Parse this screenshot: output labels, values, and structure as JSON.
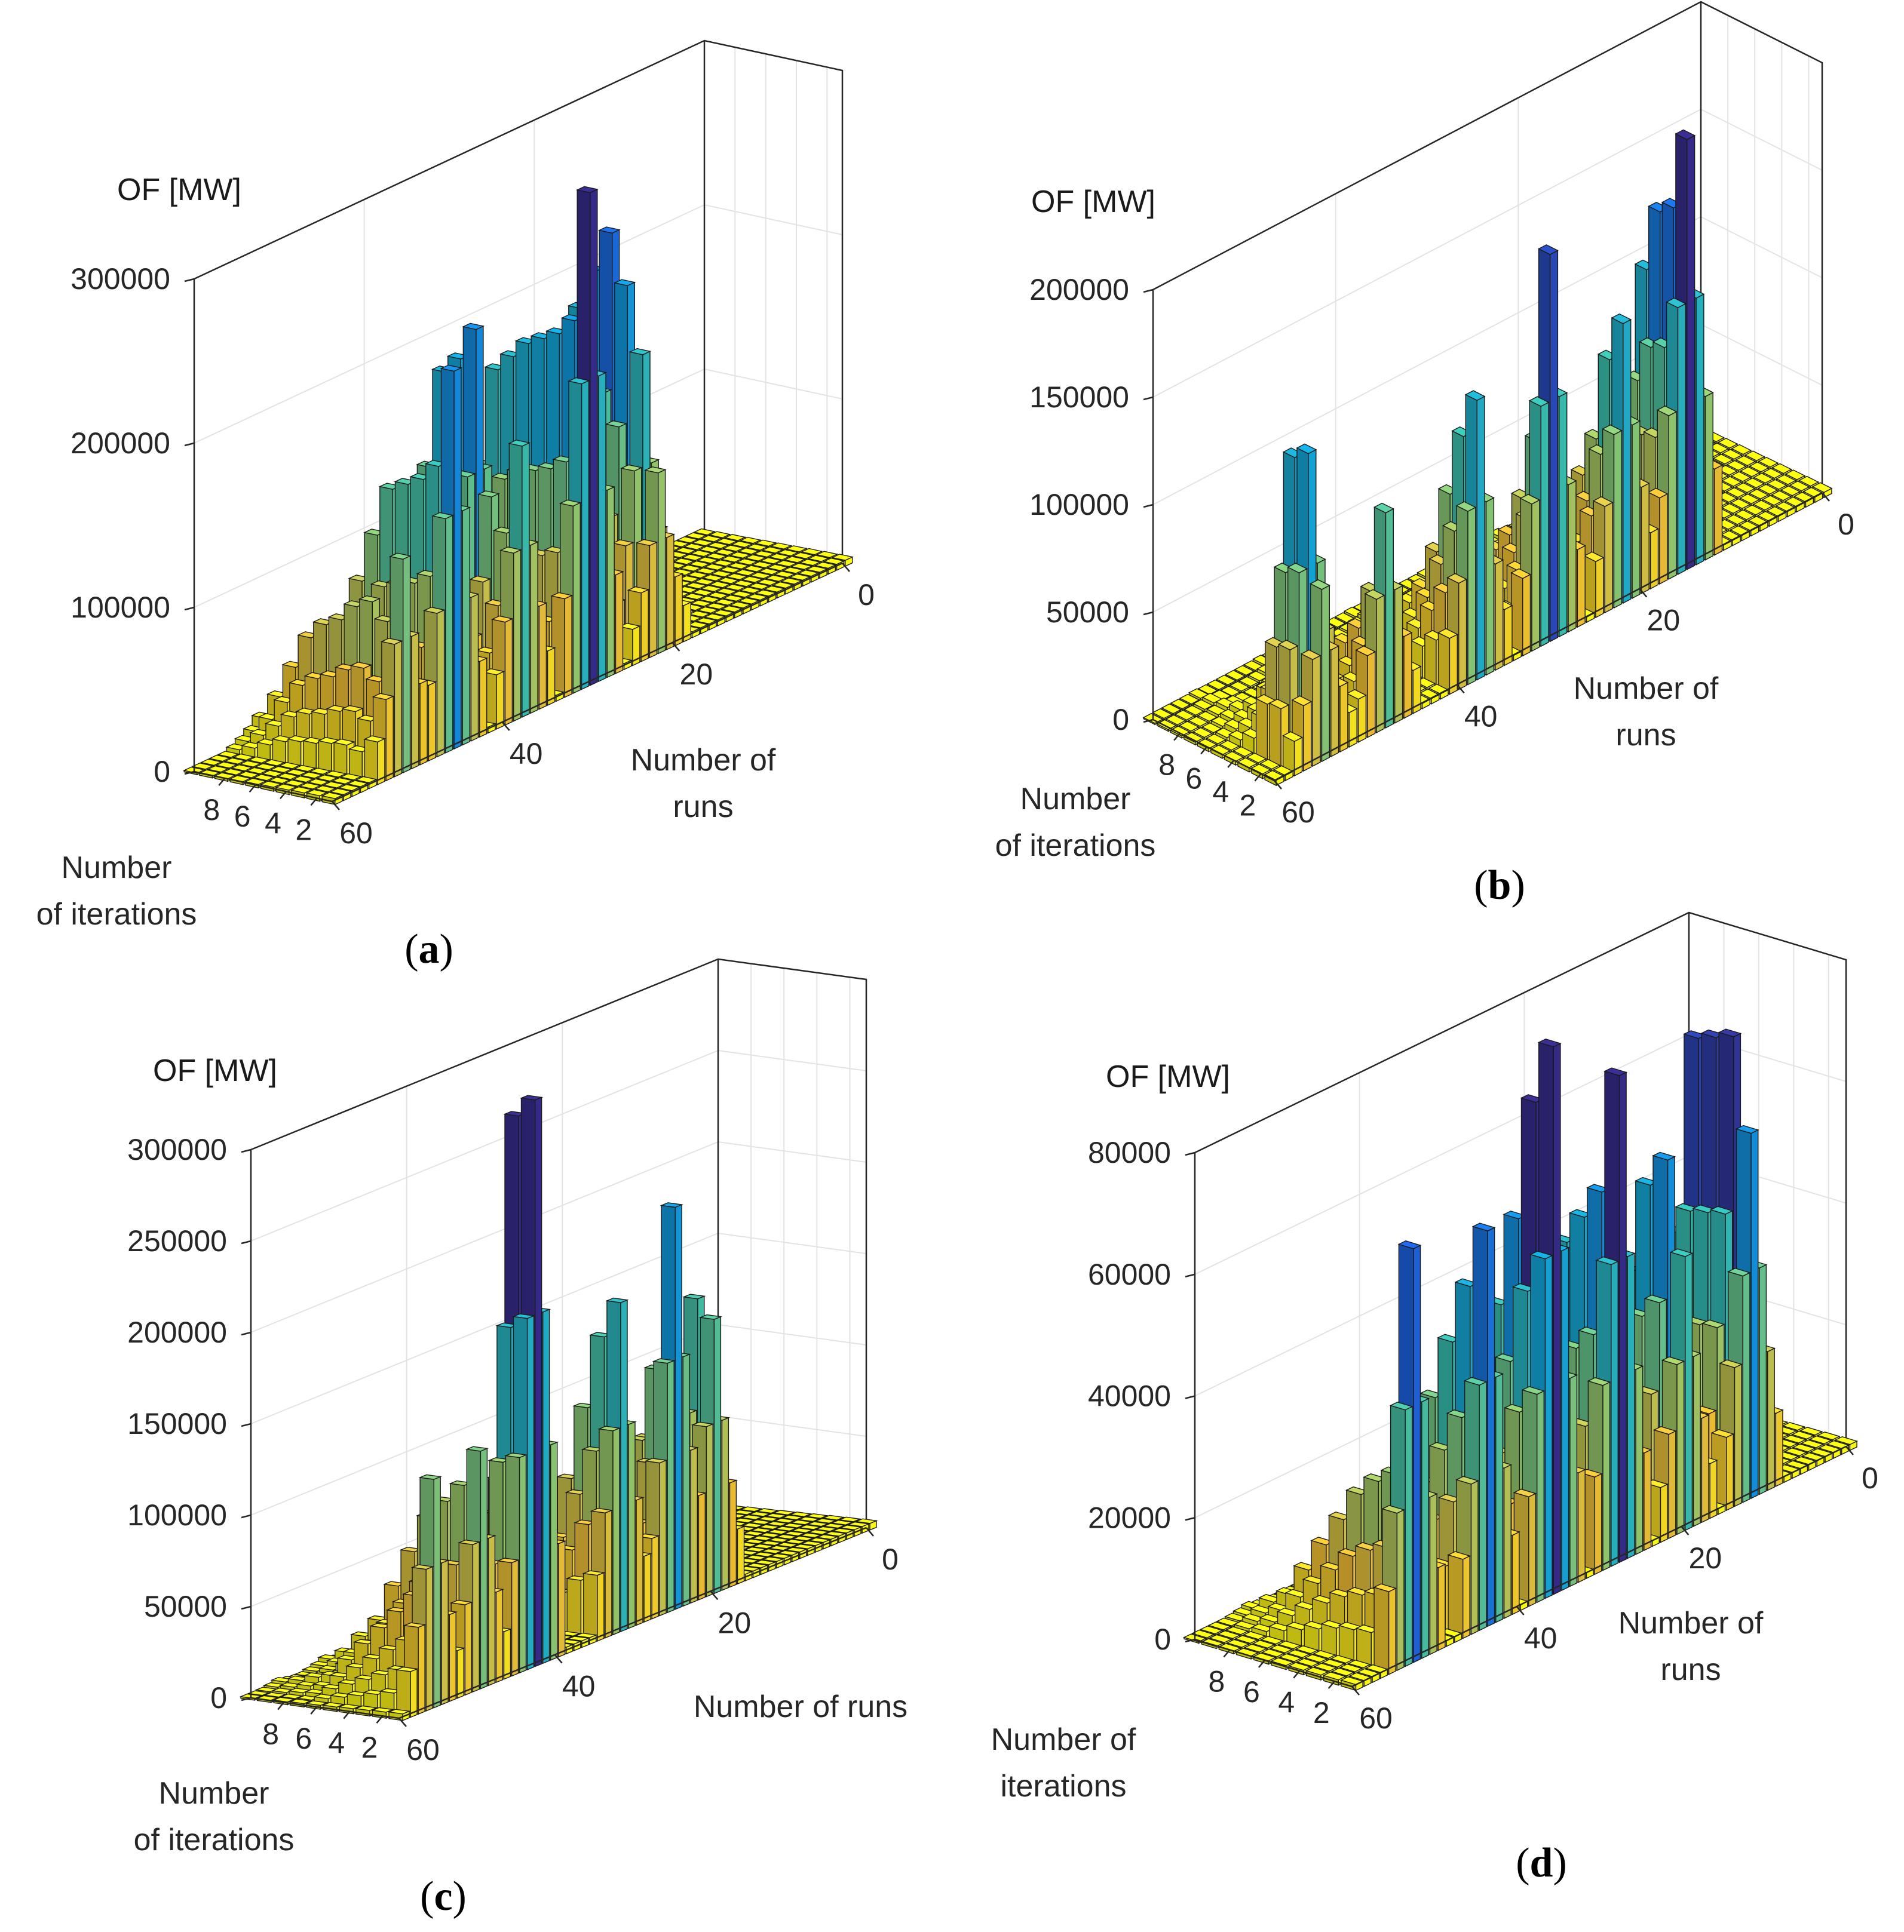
{
  "figure": {
    "colormap": [
      "#352a87",
      "#1c5fd8",
      "#0f9fd6",
      "#38b9a8",
      "#8fc26a",
      "#e9b932",
      "#f9fb0e"
    ]
  },
  "chart_data": [
    {
      "id": "a",
      "type": "bar3",
      "caption_letter": "a",
      "zlabel": "OF [MW]",
      "xlabel_lines": [
        "Number of",
        "runs"
      ],
      "ylabel_lines": [
        "Number",
        "of iterations"
      ],
      "z_ticks": [
        "0",
        "100000",
        "200000",
        "300000"
      ],
      "z_tick_values": [
        0,
        100000,
        200000,
        300000
      ],
      "zlim": [
        0,
        300000
      ],
      "run_ticks": [
        "0",
        "20",
        "40",
        "60"
      ],
      "run_tick_values": [
        0,
        20,
        40,
        60
      ],
      "iter_ticks": [
        "2",
        "4",
        "6",
        "8"
      ],
      "iter_tick_values": [
        2,
        4,
        6,
        8
      ],
      "runs_range": [
        0,
        60
      ],
      "iterations_range": [
        1,
        10
      ],
      "peaks": [
        {
          "run": 22,
          "values": [
            110000,
            180000,
            220000,
            250000,
            225000,
            200000,
            150000,
            80000,
            30000,
            10000
          ]
        },
        {
          "run": 30,
          "values": [
            300000,
            220000,
            210000,
            205000,
            200000,
            190000,
            180000,
            120000,
            70000,
            30000
          ]
        },
        {
          "run": 38,
          "values": [
            165000,
            110000,
            130000,
            230000,
            210000,
            200000,
            140000,
            90000,
            60000,
            20000
          ]
        },
        {
          "run": 46,
          "values": [
            230000,
            170000,
            160000,
            155000,
            150000,
            120000,
            90000,
            60000,
            40000,
            20000
          ]
        },
        {
          "run": 52,
          "values": [
            130000,
            90000,
            100000,
            95000,
            85000,
            80000,
            70000,
            50000,
            30000,
            15000
          ]
        }
      ]
    },
    {
      "id": "b",
      "type": "bar3",
      "caption_letter": "b",
      "zlabel": "OF [MW]",
      "xlabel_lines": [
        "Number of",
        "runs"
      ],
      "ylabel_lines": [
        "Number",
        "of iterations"
      ],
      "z_ticks": [
        "0",
        "50000",
        "100000",
        "150000",
        "200000"
      ],
      "z_tick_values": [
        0,
        50000,
        100000,
        150000,
        200000
      ],
      "zlim": [
        0,
        200000
      ],
      "run_ticks": [
        "0",
        "20",
        "40",
        "60"
      ],
      "run_tick_values": [
        0,
        20,
        40,
        60
      ],
      "iter_ticks": [
        "2",
        "4",
        "6",
        "8"
      ],
      "iter_tick_values": [
        2,
        4,
        6,
        8
      ],
      "runs_range": [
        0,
        60
      ],
      "iterations_range": [
        1,
        10
      ],
      "peaks": [
        {
          "run": 15,
          "values": [
            200000,
            165000,
            160000,
            130000,
            60000,
            40000,
            30000,
            20000,
            8000,
            3000
          ]
        },
        {
          "run": 22,
          "values": [
            130000,
            110000,
            70000,
            50000,
            40000,
            30000,
            20000,
            10000,
            5000,
            2000
          ]
        },
        {
          "run": 30,
          "values": [
            180000,
            90000,
            60000,
            40000,
            30000,
            20000,
            10000,
            5000,
            3000,
            1000
          ]
        },
        {
          "run": 38,
          "values": [
            130000,
            110000,
            80000,
            50000,
            30000,
            20000,
            10000,
            5000,
            3000,
            1000
          ]
        },
        {
          "run": 48,
          "values": [
            100000,
            60000,
            40000,
            30000,
            20000,
            10000,
            8000,
            5000,
            3000,
            1000
          ]
        },
        {
          "run": 55,
          "values": [
            80000,
            140000,
            135000,
            40000,
            20000,
            10000,
            5000,
            3000,
            2000,
            1000
          ]
        }
      ]
    },
    {
      "id": "c",
      "type": "bar3",
      "caption_letter": "c",
      "zlabel": "OF [MW]",
      "xlabel_lines": [
        "Number of runs"
      ],
      "ylabel_lines": [
        "Number",
        "of iterations"
      ],
      "z_ticks": [
        "0",
        "50000",
        "100000",
        "150000",
        "200000",
        "250000",
        "300000"
      ],
      "z_tick_values": [
        0,
        50000,
        100000,
        150000,
        200000,
        250000,
        300000
      ],
      "zlim": [
        0,
        300000
      ],
      "run_ticks": [
        "0",
        "20",
        "40",
        "60"
      ],
      "run_tick_values": [
        0,
        20,
        40,
        60
      ],
      "iter_ticks": [
        "2",
        "4",
        "6",
        "8"
      ],
      "iter_tick_values": [
        2,
        4,
        6,
        8
      ],
      "runs_range": [
        0,
        60
      ],
      "iterations_range": [
        1,
        10
      ],
      "peaks": [
        {
          "run": 20,
          "values": [
            150000,
            160000,
            120000,
            100000,
            80000,
            60000,
            40000,
            20000,
            10000,
            5000
          ]
        },
        {
          "run": 25,
          "values": [
            220000,
            130000,
            90000,
            70000,
            50000,
            40000,
            30000,
            20000,
            10000,
            5000
          ]
        },
        {
          "run": 32,
          "values": [
            180000,
            160000,
            120000,
            80000,
            60000,
            40000,
            30000,
            20000,
            10000,
            5000
          ]
        },
        {
          "run": 43,
          "values": [
            310000,
            300000,
            100000,
            80000,
            60000,
            40000,
            30000,
            20000,
            10000,
            5000
          ]
        },
        {
          "run": 50,
          "values": [
            130000,
            110000,
            100000,
            90000,
            70000,
            50000,
            30000,
            20000,
            10000,
            5000
          ]
        },
        {
          "run": 56,
          "values": [
            125000,
            60000,
            50000,
            40000,
            30000,
            20000,
            10000,
            8000,
            5000,
            3000
          ]
        }
      ]
    },
    {
      "id": "d",
      "type": "bar3",
      "caption_letter": "d",
      "zlabel": "OF [MW]",
      "xlabel_lines": [
        "Number of",
        "runs"
      ],
      "ylabel_lines": [
        "Number of",
        "iterations"
      ],
      "z_ticks": [
        "0",
        "20000",
        "40000",
        "60000",
        "80000"
      ],
      "z_tick_values": [
        0,
        20000,
        40000,
        60000,
        80000
      ],
      "zlim": [
        0,
        80000
      ],
      "run_ticks": [
        "0",
        "20",
        "40",
        "60"
      ],
      "run_tick_values": [
        0,
        20,
        40,
        60
      ],
      "iter_ticks": [
        "2",
        "4",
        "6",
        "8"
      ],
      "iter_tick_values": [
        2,
        4,
        6,
        8
      ],
      "runs_range": [
        0,
        60
      ],
      "iterations_range": [
        1,
        10
      ],
      "peaks": [
        {
          "run": 12,
          "values": [
            60000,
            75000,
            74000,
            73000,
            40000,
            30000,
            20000,
            10000,
            5000,
            2000
          ]
        },
        {
          "run": 20,
          "values": [
            45000,
            60000,
            55000,
            40000,
            30000,
            20000,
            10000,
            5000,
            3000,
            1000
          ]
        },
        {
          "run": 28,
          "values": [
            80000,
            60000,
            55000,
            50000,
            40000,
            30000,
            20000,
            10000,
            5000,
            2000
          ]
        },
        {
          "run": 36,
          "values": [
            90000,
            80000,
            60000,
            45000,
            30000,
            20000,
            10000,
            5000,
            3000,
            1000
          ]
        },
        {
          "run": 44,
          "values": [
            65000,
            55000,
            45000,
            35000,
            25000,
            15000,
            10000,
            5000,
            3000,
            1000
          ]
        },
        {
          "run": 53,
          "values": [
            68000,
            30000,
            28000,
            25000,
            20000,
            15000,
            10000,
            5000,
            3000,
            1000
          ]
        }
      ]
    }
  ]
}
